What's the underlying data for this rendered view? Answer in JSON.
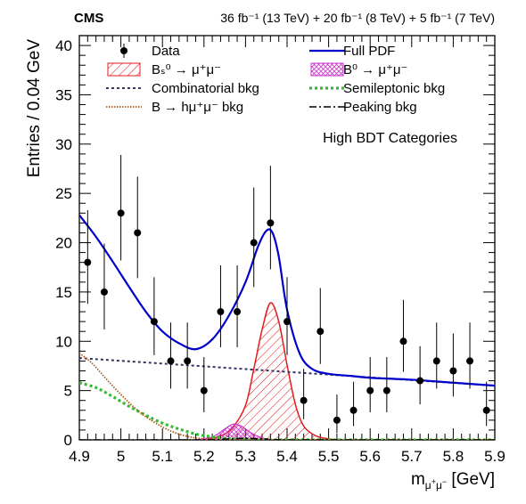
{
  "header": {
    "experiment": "CMS",
    "lumi": "36 fb⁻¹ (13 TeV) + 20 fb⁻¹ (8 TeV) + 5 fb⁻¹ (7 TeV)"
  },
  "chart_data": {
    "type": "scatter",
    "xlabel": "mμ⁺μ⁻ [GeV]",
    "ylabel": "Entries / 0.04 GeV",
    "category_label": "High BDT Categories",
    "xlim": [
      4.9,
      5.9
    ],
    "ylim": [
      0,
      41
    ],
    "x_ticks": [
      "4.9",
      "5",
      "5.1",
      "5.2",
      "5.3",
      "5.4",
      "5.5",
      "5.6",
      "5.7",
      "5.8",
      "5.9"
    ],
    "y_ticks": [
      "0",
      "5",
      "10",
      "15",
      "20",
      "25",
      "30",
      "35",
      "40"
    ],
    "grid": false,
    "legend_position": "top",
    "colors": {
      "data": "#000000",
      "full_pdf": "#0000cc",
      "bs": "#e41a1c",
      "b0": "#cc33cc",
      "combinatorial": "#333366",
      "semileptonic": "#33bb33",
      "hmumu": "#b05a1a",
      "peaking": "#000000"
    },
    "legend": [
      {
        "key": "data",
        "label": "Data"
      },
      {
        "key": "full_pdf",
        "label": "Full PDF"
      },
      {
        "key": "bs",
        "label": "Bₛ⁰ → μ⁺μ⁻"
      },
      {
        "key": "b0",
        "label": "B⁰ → μ⁺μ⁻"
      },
      {
        "key": "combinatorial",
        "label": "Combinatorial bkg"
      },
      {
        "key": "semileptonic",
        "label": "Semileptonic bkg"
      },
      {
        "key": "hmumu",
        "label": "B → hμ⁺μ⁻ bkg"
      },
      {
        "key": "peaking",
        "label": "Peaking bkg"
      }
    ],
    "series": [
      {
        "name": "Data",
        "x": [
          4.92,
          4.96,
          5.0,
          5.04,
          5.08,
          5.12,
          5.16,
          5.2,
          5.24,
          5.28,
          5.32,
          5.36,
          5.4,
          5.44,
          5.48,
          5.52,
          5.56,
          5.6,
          5.64,
          5.68,
          5.72,
          5.76,
          5.8,
          5.84,
          5.88
        ],
        "y": [
          18,
          15,
          23,
          21,
          12,
          8,
          8,
          5,
          13,
          13,
          20,
          22,
          12,
          4,
          11,
          2,
          3,
          5,
          5,
          10,
          6,
          8,
          7,
          8,
          3
        ],
        "err_low": [
          4.2,
          3.8,
          4.8,
          4.6,
          3.4,
          2.8,
          2.8,
          2.2,
          3.6,
          3.6,
          4.5,
          4.7,
          3.4,
          1.9,
          3.3,
          1.3,
          1.6,
          2.2,
          2.2,
          3.1,
          2.4,
          2.8,
          2.6,
          2.8,
          1.6
        ],
        "err_high": [
          5.3,
          4.9,
          5.9,
          5.7,
          4.5,
          3.9,
          3.9,
          3.4,
          4.7,
          4.7,
          5.6,
          5.8,
          4.5,
          3.2,
          4.4,
          2.6,
          2.9,
          3.4,
          3.4,
          4.2,
          3.5,
          3.9,
          3.8,
          3.9,
          2.9
        ]
      },
      {
        "name": "Full PDF",
        "x": [
          4.9,
          4.94,
          4.98,
          5.02,
          5.06,
          5.1,
          5.14,
          5.18,
          5.22,
          5.26,
          5.3,
          5.33,
          5.35,
          5.365,
          5.38,
          5.4,
          5.43,
          5.46,
          5.5,
          5.55,
          5.6,
          5.7,
          5.8,
          5.9
        ],
        "y": [
          22.8,
          20.6,
          18.1,
          15.5,
          13.0,
          11.0,
          9.8,
          9.2,
          10.2,
          12.6,
          16.0,
          19.6,
          21.2,
          21.0,
          18.6,
          13.2,
          8.8,
          7.2,
          6.7,
          6.5,
          6.3,
          6.1,
          5.8,
          5.5
        ]
      },
      {
        "name": "Bs0 -> mumu",
        "x": [
          5.2,
          5.24,
          5.27,
          5.3,
          5.32,
          5.34,
          5.36,
          5.38,
          5.4,
          5.42,
          5.44,
          5.47,
          5.5,
          5.52
        ],
        "y": [
          0.0,
          0.4,
          1.3,
          3.5,
          7.2,
          11.2,
          13.9,
          12.0,
          7.6,
          3.6,
          1.4,
          0.4,
          0.1,
          0.0
        ]
      },
      {
        "name": "B0 -> mumu",
        "x": [
          5.18,
          5.22,
          5.25,
          5.27,
          5.29,
          5.31,
          5.34,
          5.38
        ],
        "y": [
          0.0,
          0.3,
          1.1,
          1.6,
          1.4,
          0.8,
          0.2,
          0.0
        ]
      },
      {
        "name": "Combinatorial bkg",
        "x": [
          4.9,
          5.9
        ],
        "y": [
          8.3,
          5.5
        ]
      },
      {
        "name": "Semileptonic bkg",
        "x": [
          4.9,
          4.94,
          4.98,
          5.02,
          5.06,
          5.1,
          5.14,
          5.18,
          5.22,
          5.26,
          5.3,
          5.34,
          5.9
        ],
        "y": [
          5.8,
          5.3,
          4.4,
          3.4,
          2.5,
          1.7,
          1.1,
          0.6,
          0.3,
          0.1,
          0.03,
          0.0,
          0.0
        ]
      },
      {
        "name": "B -> h mumu bkg",
        "x": [
          4.9,
          4.93,
          4.96,
          5.0,
          5.04,
          5.08,
          5.12,
          5.16,
          5.2,
          5.24,
          5.26,
          5.9
        ],
        "y": [
          8.8,
          7.8,
          6.4,
          4.6,
          3.0,
          1.8,
          0.9,
          0.35,
          0.1,
          0.02,
          0.0,
          0.0
        ]
      },
      {
        "name": "Peaking bkg",
        "x": [
          4.9,
          5.2,
          5.25,
          5.3,
          5.35,
          5.4,
          5.9
        ],
        "y": [
          0.0,
          0.0,
          0.08,
          0.15,
          0.08,
          0.0,
          0.0
        ]
      }
    ]
  }
}
